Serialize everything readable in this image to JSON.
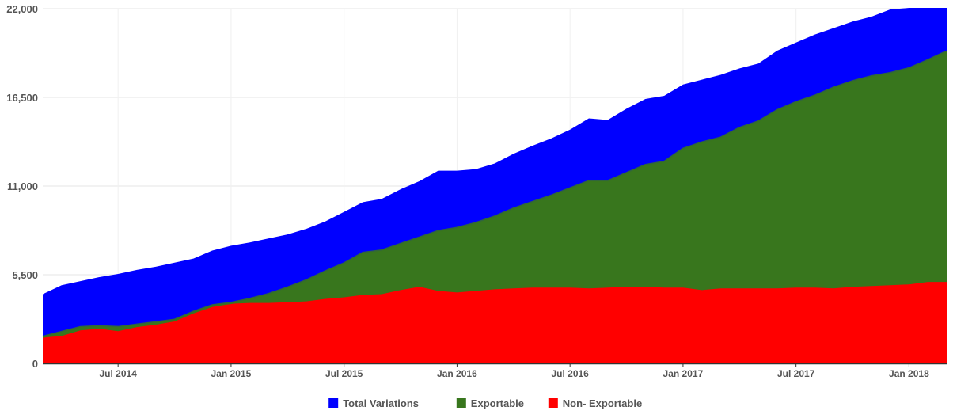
{
  "chart_data": {
    "type": "area",
    "stacked": false,
    "x": [
      "2014-03",
      "2014-04",
      "2014-05",
      "2014-06",
      "2014-07",
      "2014-08",
      "2014-09",
      "2014-10",
      "2014-11",
      "2014-12",
      "2015-01",
      "2015-02",
      "2015-03",
      "2015-04",
      "2015-05",
      "2015-06",
      "2015-07",
      "2015-08",
      "2015-09",
      "2015-10",
      "2015-11",
      "2015-12",
      "2016-01",
      "2016-02",
      "2016-03",
      "2016-04",
      "2016-05",
      "2016-06",
      "2016-07",
      "2016-08",
      "2016-09",
      "2016-10",
      "2016-11",
      "2016-12",
      "2017-01",
      "2017-02",
      "2017-03",
      "2017-04",
      "2017-05",
      "2017-06",
      "2017-07",
      "2017-08",
      "2017-09",
      "2017-10",
      "2017-11",
      "2017-12",
      "2018-01",
      "2018-02",
      "2018-03"
    ],
    "series": [
      {
        "name": "Total Variations",
        "color": "#0000ff",
        "values": [
          4300,
          4850,
          5100,
          5350,
          5550,
          5800,
          6000,
          6250,
          6500,
          7000,
          7300,
          7500,
          7750,
          8000,
          8350,
          8800,
          9400,
          10000,
          10200,
          10800,
          11300,
          11950,
          11950,
          12050,
          12400,
          13000,
          13500,
          13950,
          14500,
          15200,
          15100,
          15800,
          16400,
          16600,
          17300,
          17600,
          17900,
          18300,
          18600,
          19400,
          19900,
          20400,
          20800,
          21200,
          21500,
          21950,
          22050,
          22050,
          22050
        ]
      },
      {
        "name": "Exportable",
        "color": "#38761d",
        "values": [
          1650,
          1950,
          2250,
          2300,
          2250,
          2400,
          2550,
          2700,
          3200,
          3600,
          3750,
          4000,
          4300,
          4700,
          5150,
          5700,
          6200,
          6850,
          7000,
          7400,
          7800,
          8200,
          8400,
          8700,
          9100,
          9600,
          10000,
          10400,
          10850,
          11300,
          11300,
          11800,
          12300,
          12500,
          13300,
          13700,
          14000,
          14600,
          15000,
          15700,
          16200,
          16600,
          17100,
          17500,
          17800,
          18000,
          18300,
          18800,
          19350
        ]
      },
      {
        "name": "Non- Exportable",
        "color": "#ff0000",
        "values": [
          1600,
          1700,
          2050,
          2150,
          2000,
          2250,
          2400,
          2600,
          3100,
          3500,
          3700,
          3750,
          3750,
          3800,
          3850,
          4000,
          4100,
          4250,
          4300,
          4550,
          4750,
          4500,
          4400,
          4500,
          4600,
          4650,
          4700,
          4700,
          4700,
          4650,
          4700,
          4750,
          4750,
          4700,
          4700,
          4550,
          4650,
          4650,
          4650,
          4650,
          4700,
          4700,
          4650,
          4750,
          4800,
          4850,
          4900,
          5050,
          5050
        ]
      }
    ],
    "y_ticks": [
      "0",
      "5,500",
      "11,000",
      "16,500",
      "22,000"
    ],
    "y_tick_values": [
      0,
      5500,
      11000,
      16500,
      22000
    ],
    "ylim": [
      0,
      22000
    ],
    "x_ticks": [
      "Jul 2014",
      "Jan 2015",
      "Jul 2015",
      "Jan 2016",
      "Jul 2016",
      "Jan 2017",
      "Jul 2017",
      "Jan 2018"
    ],
    "x_tick_dates": [
      "2014-07",
      "2015-01",
      "2015-07",
      "2016-01",
      "2016-07",
      "2017-01",
      "2017-07",
      "2018-01"
    ],
    "grid": true,
    "legend_position": "bottom-center"
  }
}
